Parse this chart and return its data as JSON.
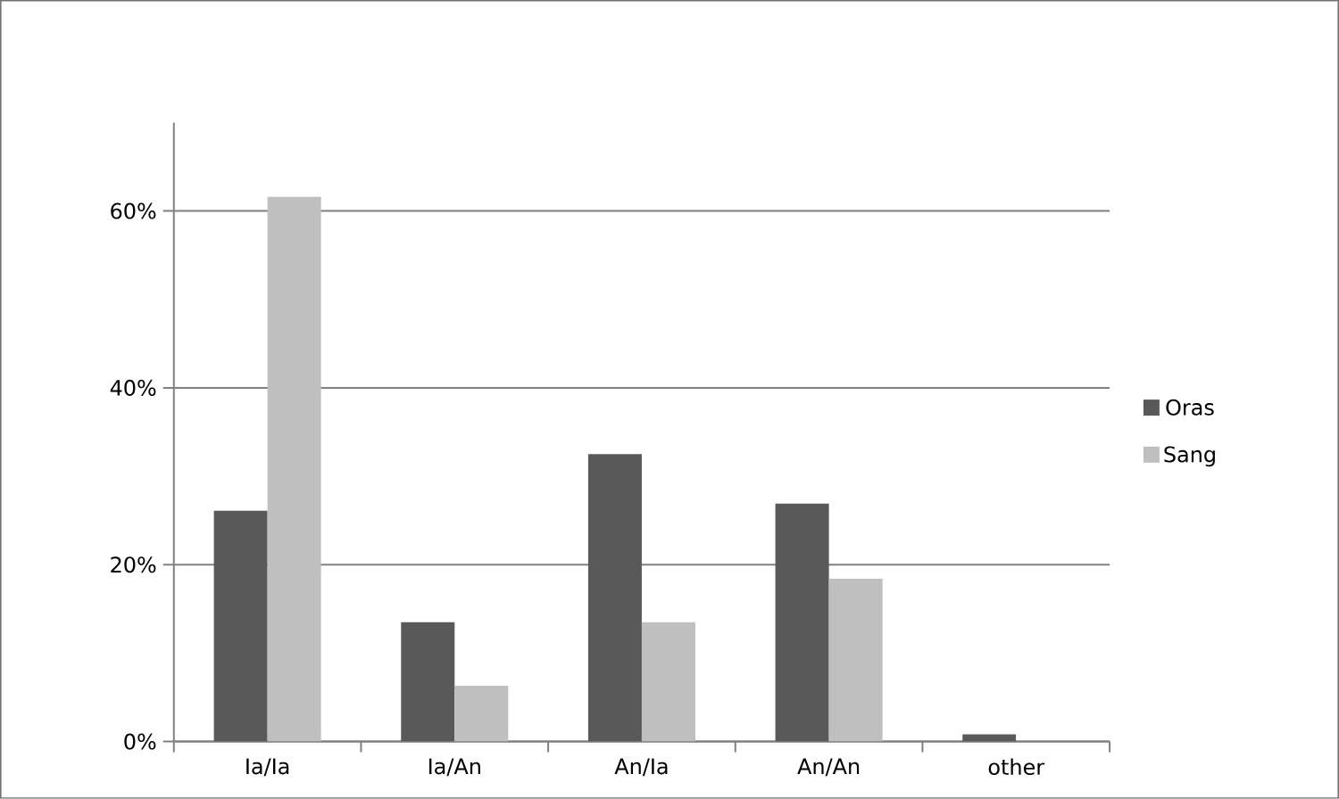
{
  "chart_data": {
    "type": "bar",
    "categories": [
      "Ia/Ia",
      "Ia/An",
      "An/Ia",
      "An/An",
      "other"
    ],
    "series": [
      {
        "name": "Oras",
        "color": "#595959",
        "values": [
          26.1,
          13.5,
          32.5,
          26.9,
          0.8
        ]
      },
      {
        "name": "Sang",
        "color": "#bfbfbf",
        "values": [
          61.6,
          6.3,
          13.5,
          18.4,
          0
        ]
      }
    ],
    "ylim": [
      0,
      70
    ],
    "yticks": [
      {
        "value": 0,
        "label": "0%"
      },
      {
        "value": 20,
        "label": "20%"
      },
      {
        "value": 40,
        "label": "40%"
      },
      {
        "value": 60,
        "label": "60%"
      }
    ],
    "grid": "y",
    "legend": "right"
  }
}
